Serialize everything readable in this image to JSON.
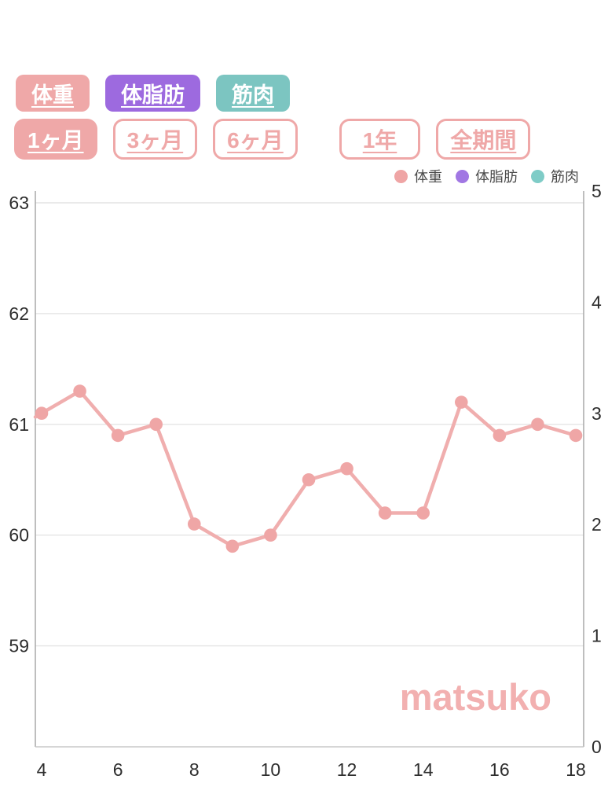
{
  "colors": {
    "pink": "#EFA8A8",
    "purple": "#9D6ADF",
    "teal": "#7CC5C1",
    "pink_light": "#F2B0B0",
    "axis_text": "#2e2e2e",
    "legend_text": "#4a4a4a",
    "gridline": "#e4e4e4",
    "axis_line": "#adadad",
    "bottom_line": "#c9c9c9"
  },
  "metric_buttons": [
    {
      "label": "体重",
      "color_key": "pink",
      "selected": true
    },
    {
      "label": "体脂肪",
      "color_key": "purple",
      "selected": true
    },
    {
      "label": "筋肉",
      "color_key": "teal",
      "selected": true
    }
  ],
  "period_buttons": [
    {
      "label": "1ヶ月",
      "active": true
    },
    {
      "label": "3ヶ月",
      "active": false
    },
    {
      "label": "6ヶ月",
      "active": false
    },
    {
      "label": "1年",
      "active": false
    },
    {
      "label": "全期間",
      "active": false
    }
  ],
  "legend": {
    "items": [
      {
        "label": "体重",
        "color": "#EFA5A5"
      },
      {
        "label": "体脂肪",
        "color": "#A177E3"
      },
      {
        "label": "筋肉",
        "color": "#7FCCC7"
      }
    ]
  },
  "chart_data": {
    "type": "line",
    "x": [
      4,
      5,
      6,
      7,
      8,
      9,
      10,
      11,
      12,
      13,
      14,
      15,
      16,
      17,
      18
    ],
    "series": [
      {
        "name": "体重",
        "values": [
          61.1,
          61.3,
          60.9,
          61.0,
          60.1,
          59.9,
          60.0,
          60.5,
          60.6,
          60.2,
          60.2,
          61.2,
          60.9,
          61.0,
          60.9
        ],
        "line_color": "#F0AEAE",
        "marker_color": "#EFA6A6"
      }
    ],
    "left_axis": {
      "ticks": [
        63,
        62,
        61,
        60,
        59
      ]
    },
    "right_axis": {
      "ticks": [
        5,
        4,
        3,
        2,
        1,
        0
      ],
      "range": [
        0,
        5
      ]
    },
    "x_axis": {
      "ticks": [
        4,
        6,
        8,
        10,
        12,
        14,
        16,
        18
      ]
    },
    "grid": "horizontal-only",
    "legend_position": "top-right",
    "line_extends_to_left_edge": true,
    "watermark": "matsuko"
  }
}
